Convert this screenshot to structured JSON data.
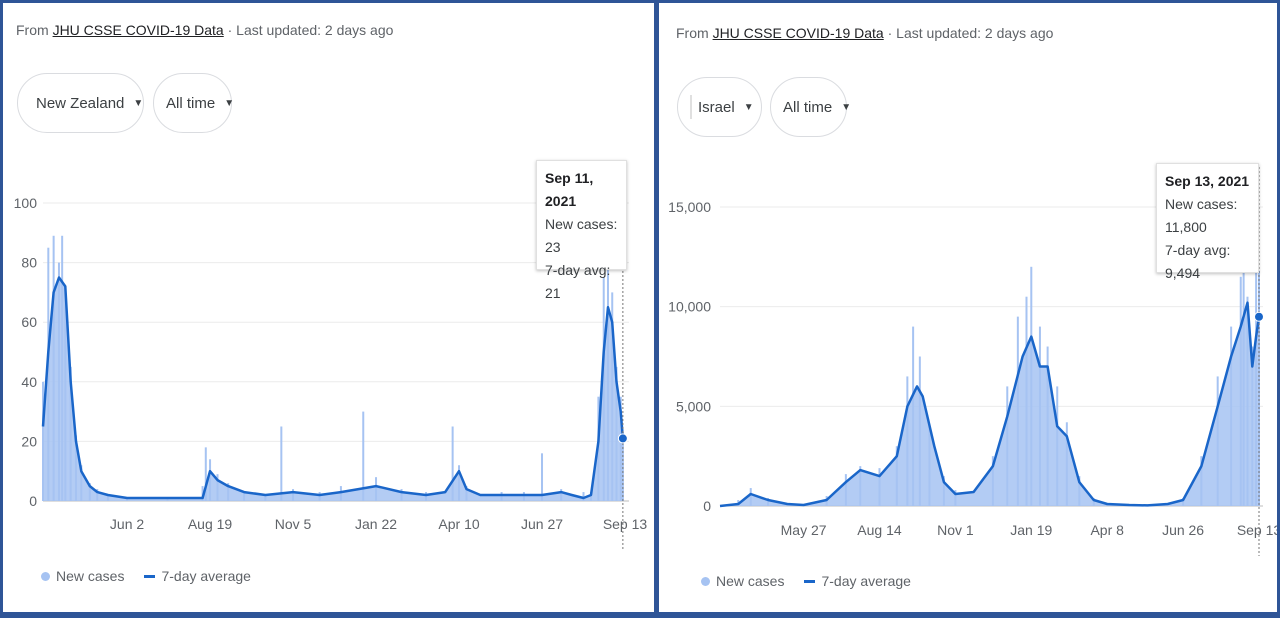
{
  "panels": [
    {
      "source_prefix": "From",
      "source_link": "JHU CSSE COVID-19 Data",
      "updated": "· Last updated: 2 days ago",
      "country": "New Zealand",
      "range": "All time",
      "tooltip": {
        "date": "Sep 11, 2021",
        "new_cases": "New cases: 23",
        "avg": "7-day avg: 21"
      },
      "legend": {
        "bars": "New cases",
        "line": "7-day average"
      }
    },
    {
      "source_prefix": "From",
      "source_link": "JHU CSSE COVID-19 Data",
      "updated": "· Last updated: 2 days ago",
      "country": "Israel",
      "range": "All time",
      "tooltip": {
        "date": "Sep 13, 2021",
        "new_cases": "New cases: 11,800",
        "avg": "7-day avg: 9,494"
      },
      "legend": {
        "bars": "New cases",
        "line": "7-day average"
      }
    }
  ],
  "colors": {
    "bars": "#a6c3f2",
    "line": "#1a66c9",
    "grid": "#ebebeb",
    "axis": "#5f6368",
    "border": "#2f5597"
  },
  "chart_data": [
    {
      "type": "area",
      "title": "New Zealand",
      "ylim": [
        0,
        100
      ],
      "yticks": [
        0,
        20,
        40,
        60,
        80,
        100
      ],
      "ytick_labels": [
        "0",
        "20",
        "40",
        "60",
        "80",
        "100"
      ],
      "xticks": [
        "Jun 2",
        "Aug 19",
        "Nov 5",
        "Jan 22",
        "Apr 10",
        "Jun 27",
        "Sep 13"
      ],
      "x_range": [
        "2020-03-15",
        "2021-09-13"
      ],
      "grid": true,
      "legend": "bottom-left",
      "series": [
        {
          "name": "7-day average",
          "kind": "line",
          "x": [
            "2020-03-15",
            "2020-03-20",
            "2020-03-25",
            "2020-03-30",
            "2020-04-05",
            "2020-04-10",
            "2020-04-15",
            "2020-04-20",
            "2020-04-28",
            "2020-05-05",
            "2020-05-15",
            "2020-06-02",
            "2020-06-20",
            "2020-07-10",
            "2020-08-01",
            "2020-08-12",
            "2020-08-19",
            "2020-08-26",
            "2020-09-05",
            "2020-09-20",
            "2020-10-10",
            "2020-11-05",
            "2020-11-30",
            "2020-12-20",
            "2021-01-22",
            "2021-02-15",
            "2021-03-10",
            "2021-03-28",
            "2021-04-10",
            "2021-04-17",
            "2021-04-30",
            "2021-05-20",
            "2021-06-10",
            "2021-06-27",
            "2021-07-15",
            "2021-07-25",
            "2021-08-05",
            "2021-08-12",
            "2021-08-19",
            "2021-08-24",
            "2021-08-28",
            "2021-09-01",
            "2021-09-05",
            "2021-09-09",
            "2021-09-11"
          ],
          "y": [
            25,
            50,
            70,
            75,
            72,
            40,
            20,
            10,
            5,
            3,
            2,
            1,
            1,
            1,
            1,
            1,
            10,
            7,
            5,
            3,
            2,
            3,
            2,
            3,
            5,
            3,
            2,
            3,
            10,
            4,
            2,
            2,
            2,
            2,
            3,
            2,
            1,
            2,
            20,
            50,
            65,
            60,
            40,
            30,
            21
          ]
        },
        {
          "name": "New cases",
          "kind": "bar",
          "x": [
            "2020-03-15",
            "2020-03-20",
            "2020-03-25",
            "2020-03-30",
            "2020-04-02",
            "2020-04-05",
            "2020-04-10",
            "2020-04-15",
            "2020-04-20",
            "2020-04-28",
            "2020-05-05",
            "2020-05-15",
            "2020-06-02",
            "2020-07-10",
            "2020-08-12",
            "2020-08-15",
            "2020-08-19",
            "2020-08-26",
            "2020-09-05",
            "2020-09-20",
            "2020-10-10",
            "2020-10-25",
            "2020-11-05",
            "2020-11-30",
            "2020-12-20",
            "2021-01-10",
            "2021-01-22",
            "2021-02-15",
            "2021-03-10",
            "2021-04-04",
            "2021-04-10",
            "2021-04-17",
            "2021-05-20",
            "2021-06-10",
            "2021-06-27",
            "2021-07-15",
            "2021-08-05",
            "2021-08-12",
            "2021-08-19",
            "2021-08-24",
            "2021-08-28",
            "2021-09-01",
            "2021-09-05",
            "2021-09-09",
            "2021-09-11"
          ],
          "y": [
            40,
            85,
            89,
            80,
            89,
            70,
            45,
            22,
            12,
            6,
            4,
            2,
            1,
            1,
            5,
            18,
            14,
            9,
            6,
            3,
            2,
            25,
            4,
            3,
            5,
            30,
            8,
            4,
            3,
            25,
            12,
            5,
            3,
            3,
            16,
            4,
            3,
            3,
            35,
            75,
            80,
            70,
            45,
            35,
            23
          ]
        }
      ]
    },
    {
      "type": "area",
      "title": "Israel",
      "ylim": [
        0,
        15000
      ],
      "yticks": [
        0,
        5000,
        10000,
        15000
      ],
      "ytick_labels": [
        "0",
        "5,000",
        "10,000",
        "15,000"
      ],
      "xticks": [
        "May 27",
        "Aug 14",
        "Nov 1",
        "Jan 19",
        "Apr 8",
        "Jun 26",
        "Sep 13"
      ],
      "x_range": [
        "2020-03-01",
        "2021-09-13"
      ],
      "grid": true,
      "legend": "bottom-left",
      "series": [
        {
          "name": "7-day average",
          "kind": "line",
          "x": [
            "2020-03-01",
            "2020-03-20",
            "2020-04-02",
            "2020-04-20",
            "2020-05-10",
            "2020-05-27",
            "2020-06-20",
            "2020-07-10",
            "2020-07-25",
            "2020-08-14",
            "2020-09-01",
            "2020-09-12",
            "2020-09-22",
            "2020-09-28",
            "2020-10-10",
            "2020-10-20",
            "2020-11-01",
            "2020-11-20",
            "2020-12-10",
            "2020-12-25",
            "2021-01-10",
            "2021-01-19",
            "2021-01-28",
            "2021-02-05",
            "2021-02-15",
            "2021-02-25",
            "2021-03-10",
            "2021-03-25",
            "2021-04-08",
            "2021-05-01",
            "2021-05-20",
            "2021-06-10",
            "2021-06-26",
            "2021-07-15",
            "2021-08-01",
            "2021-08-15",
            "2021-08-25",
            "2021-09-01",
            "2021-09-06",
            "2021-09-10",
            "2021-09-13"
          ],
          "y": [
            0,
            100,
            600,
            300,
            100,
            50,
            300,
            1200,
            1800,
            1500,
            2500,
            5000,
            6000,
            5500,
            3000,
            1200,
            600,
            700,
            2000,
            4500,
            7500,
            8500,
            7000,
            7000,
            4000,
            3500,
            1200,
            300,
            100,
            50,
            30,
            100,
            300,
            2000,
            5000,
            7500,
            9000,
            10200,
            7000,
            8500,
            9494
          ]
        },
        {
          "name": "New cases",
          "kind": "bar",
          "x": [
            "2020-03-20",
            "2020-04-02",
            "2020-04-20",
            "2020-05-27",
            "2020-06-20",
            "2020-07-10",
            "2020-07-25",
            "2020-08-14",
            "2020-09-01",
            "2020-09-12",
            "2020-09-18",
            "2020-09-25",
            "2020-10-05",
            "2020-10-20",
            "2020-11-01",
            "2020-12-10",
            "2020-12-25",
            "2021-01-05",
            "2021-01-14",
            "2021-01-19",
            "2021-01-28",
            "2021-02-05",
            "2021-02-15",
            "2021-02-25",
            "2021-03-10",
            "2021-03-25",
            "2021-04-08",
            "2021-06-26",
            "2021-07-15",
            "2021-08-01",
            "2021-08-15",
            "2021-08-25",
            "2021-08-28",
            "2021-09-01",
            "2021-09-06",
            "2021-09-10",
            "2021-09-13"
          ],
          "y": [
            300,
            900,
            400,
            80,
            500,
            1600,
            2000,
            1900,
            3000,
            6500,
            9000,
            7500,
            4000,
            1500,
            800,
            2500,
            6000,
            9500,
            10500,
            12000,
            9000,
            8000,
            6000,
            4200,
            1500,
            400,
            150,
            400,
            2500,
            6500,
            9000,
            11500,
            13500,
            10500,
            8000,
            12000,
            11800
          ]
        }
      ]
    }
  ]
}
